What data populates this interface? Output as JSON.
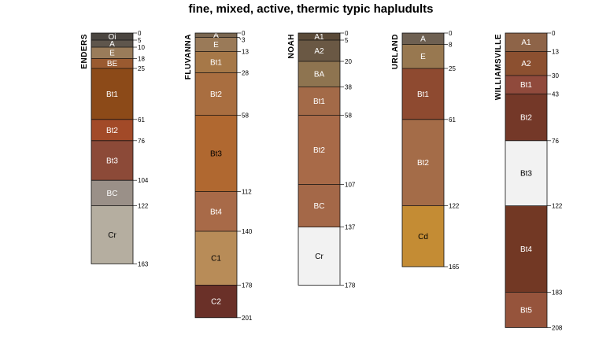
{
  "chart_data": {
    "type": "soil-profile-sketch",
    "title": "fine, mixed, active, thermic typic hapludults",
    "depth_units": "cm",
    "max_depth": 208,
    "profiles": [
      {
        "name": "ENDERS",
        "horizons": [
          {
            "name": "Oi",
            "top": 0,
            "bottom": 5,
            "color": "#4a4540",
            "text_color": "#ffffff"
          },
          {
            "name": "A",
            "top": 5,
            "bottom": 10,
            "color": "#5f564c",
            "text_color": "#ffffff"
          },
          {
            "name": "E",
            "top": 10,
            "bottom": 18,
            "color": "#9a7c5a",
            "text_color": "#ffffff"
          },
          {
            "name": "BE",
            "top": 18,
            "bottom": 25,
            "color": "#9a5a30",
            "text_color": "#ffffff"
          },
          {
            "name": "Bt1",
            "top": 25,
            "bottom": 61,
            "color": "#8c4a18",
            "text_color": "#ffffff"
          },
          {
            "name": "Bt2",
            "top": 61,
            "bottom": 76,
            "color": "#a24a28",
            "text_color": "#ffffff"
          },
          {
            "name": "Bt3",
            "top": 76,
            "bottom": 104,
            "color": "#8c4a38",
            "text_color": "#ffffff"
          },
          {
            "name": "BC",
            "top": 104,
            "bottom": 122,
            "color": "#9a9088",
            "text_color": "#ffffff"
          },
          {
            "name": "Cr",
            "top": 122,
            "bottom": 163,
            "color": "#b5aea0",
            "text_color": "#000000"
          }
        ]
      },
      {
        "name": "FLUVANNA",
        "horizons": [
          {
            "name": "A",
            "top": 0,
            "bottom": 3,
            "color": "#7a6650",
            "text_color": "#ffffff"
          },
          {
            "name": "E",
            "top": 3,
            "bottom": 13,
            "color": "#9a7a58",
            "text_color": "#ffffff"
          },
          {
            "name": "Bt1",
            "top": 13,
            "bottom": 28,
            "color": "#a67848",
            "text_color": "#ffffff"
          },
          {
            "name": "Bt2",
            "top": 28,
            "bottom": 58,
            "color": "#a96e40",
            "text_color": "#ffffff"
          },
          {
            "name": "Bt3",
            "top": 58,
            "bottom": 112,
            "color": "#b06830",
            "text_color": "#000000"
          },
          {
            "name": "Bt4",
            "top": 112,
            "bottom": 140,
            "color": "#a86a48",
            "text_color": "#ffffff"
          },
          {
            "name": "C1",
            "top": 140,
            "bottom": 178,
            "color": "#b88c58",
            "text_color": "#000000"
          },
          {
            "name": "C2",
            "top": 178,
            "bottom": 201,
            "color": "#6a3028",
            "text_color": "#ffffff"
          }
        ]
      },
      {
        "name": "NOAH",
        "horizons": [
          {
            "name": "A1",
            "top": 0,
            "bottom": 5,
            "color": "#5a4a38",
            "text_color": "#ffffff"
          },
          {
            "name": "A2",
            "top": 5,
            "bottom": 20,
            "color": "#6a5844",
            "text_color": "#ffffff"
          },
          {
            "name": "BA",
            "top": 20,
            "bottom": 38,
            "color": "#8e7450",
            "text_color": "#ffffff"
          },
          {
            "name": "Bt1",
            "top": 38,
            "bottom": 58,
            "color": "#a36a48",
            "text_color": "#ffffff"
          },
          {
            "name": "Bt2",
            "top": 58,
            "bottom": 107,
            "color": "#a86a48",
            "text_color": "#ffffff"
          },
          {
            "name": "BC",
            "top": 107,
            "bottom": 137,
            "color": "#a46848",
            "text_color": "#ffffff"
          },
          {
            "name": "Cr",
            "top": 137,
            "bottom": 178,
            "color": "#f2f2f2",
            "text_color": "#000000"
          }
        ]
      },
      {
        "name": "URLAND",
        "horizons": [
          {
            "name": "A",
            "top": 0,
            "bottom": 8,
            "color": "#6e6052",
            "text_color": "#ffffff"
          },
          {
            "name": "E",
            "top": 8,
            "bottom": 25,
            "color": "#987850",
            "text_color": "#ffffff"
          },
          {
            "name": "Bt1",
            "top": 25,
            "bottom": 61,
            "color": "#8e4a30",
            "text_color": "#ffffff"
          },
          {
            "name": "Bt2",
            "top": 61,
            "bottom": 122,
            "color": "#a46c48",
            "text_color": "#ffffff"
          },
          {
            "name": "Cd",
            "top": 122,
            "bottom": 165,
            "color": "#c48c34",
            "text_color": "#000000"
          }
        ]
      },
      {
        "name": "WILLIAMSVILLE",
        "horizons": [
          {
            "name": "A1",
            "top": 0,
            "bottom": 13,
            "color": "#8e6448",
            "text_color": "#ffffff"
          },
          {
            "name": "A2",
            "top": 13,
            "bottom": 30,
            "color": "#8c5030",
            "text_color": "#ffffff"
          },
          {
            "name": "Bt1",
            "top": 30,
            "bottom": 43,
            "color": "#904a3c",
            "text_color": "#ffffff"
          },
          {
            "name": "Bt2",
            "top": 43,
            "bottom": 76,
            "color": "#743828",
            "text_color": "#ffffff"
          },
          {
            "name": "Bt3",
            "top": 76,
            "bottom": 122,
            "color": "#f2f2f2",
            "text_color": "#000000"
          },
          {
            "name": "Bt4",
            "top": 122,
            "bottom": 183,
            "color": "#723824",
            "text_color": "#ffffff"
          },
          {
            "name": "Bt5",
            "top": 183,
            "bottom": 208,
            "color": "#96543c",
            "text_color": "#ffffff"
          }
        ]
      }
    ]
  }
}
